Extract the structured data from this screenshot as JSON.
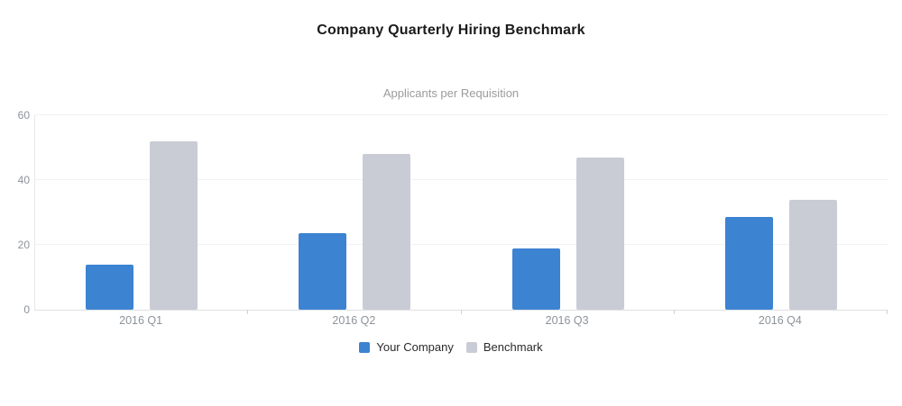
{
  "title": "Company Quarterly Hiring Benchmark",
  "chart_data": {
    "type": "bar",
    "title": "Company Quarterly Hiring Benchmark",
    "subtitle": "Applicants per Requisition",
    "categories": [
      "2016 Q1",
      "2016 Q2",
      "2016 Q3",
      "2016 Q4"
    ],
    "series": [
      {
        "name": "Your Company",
        "color": "#3c83d2",
        "values": [
          14,
          23.5,
          19,
          28.5
        ]
      },
      {
        "name": "Benchmark",
        "color": "#c9ccd4",
        "values": [
          52,
          48,
          47,
          34
        ]
      }
    ],
    "xlabel": "",
    "ylabel": "",
    "ylim": [
      0,
      60
    ],
    "yticks": [
      0,
      20,
      40,
      60
    ],
    "grid": true,
    "legend_position": "bottom"
  },
  "colors": {
    "your_company": "#3c83d2",
    "benchmark": "#c9ccd4",
    "title_text": "#1b1b1b",
    "subtitle_text": "#9b9b9b",
    "axis_label_text": "#8d939a",
    "legend_text": "#2b2b2b",
    "gridline": "#f1f1f2",
    "axis_line": "#e0e0e3"
  }
}
